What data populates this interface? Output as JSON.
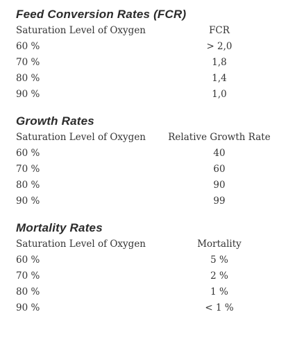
{
  "sections": [
    {
      "title": "Feed Conversion Rates (FCR)",
      "headers": [
        "Saturation Level of Oxygen",
        "FCR"
      ],
      "rows": [
        [
          "60 %",
          "> 2,0"
        ],
        [
          "70 %",
          "1,8"
        ],
        [
          "80 %",
          "1,4"
        ],
        [
          "90 %",
          "1,0"
        ]
      ]
    },
    {
      "title": "Growth Rates",
      "headers": [
        "Saturation Level of Oxygen",
        "Relative Growth Rate"
      ],
      "rows": [
        [
          "60 %",
          "40"
        ],
        [
          "70 %",
          "60"
        ],
        [
          "80 %",
          "90"
        ],
        [
          "90 %",
          "99"
        ]
      ]
    },
    {
      "title": "Mortality Rates",
      "headers": [
        "Saturation Level of Oxygen",
        "Mortality"
      ],
      "rows": [
        [
          "60 %",
          "5 %"
        ],
        [
          "70 %",
          "2 %"
        ],
        [
          "80 %",
          "1 %"
        ],
        [
          "90 %",
          "< 1 %"
        ]
      ]
    }
  ]
}
